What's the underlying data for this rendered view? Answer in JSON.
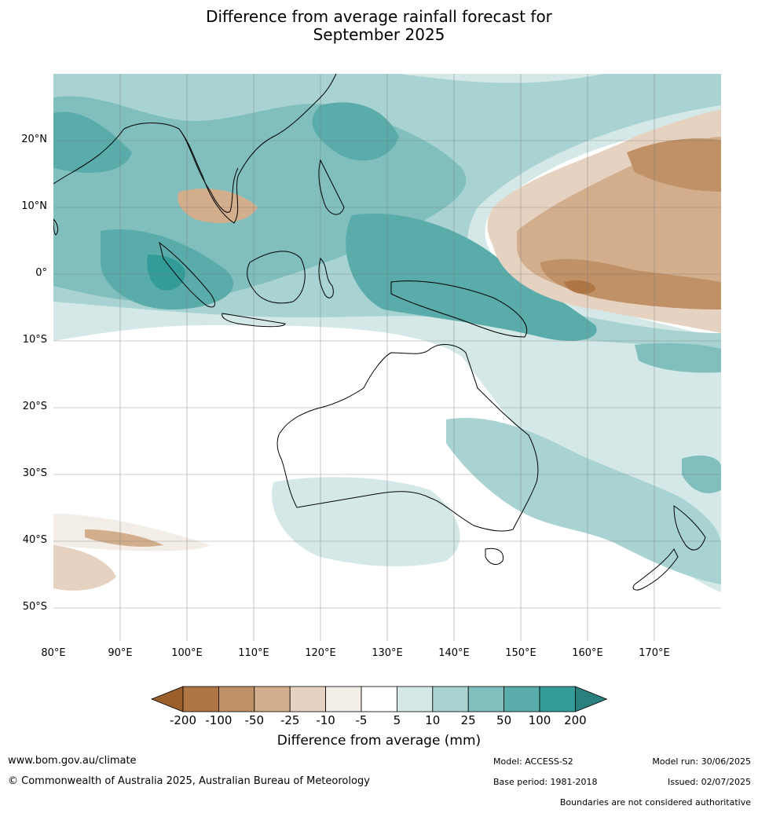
{
  "title_line1": "Difference from average rainfall forecast for",
  "title_line2": "September 2025",
  "map": {
    "lat_labels": [
      "20°N",
      "10°N",
      "0°",
      "10°S",
      "20°S",
      "30°S",
      "40°S",
      "50°S"
    ],
    "lon_labels": [
      "80°E",
      "90°E",
      "100°E",
      "110°E",
      "120°E",
      "130°E",
      "140°E",
      "150°E",
      "160°E",
      "170°E"
    ],
    "lat_range": [
      -55,
      30
    ],
    "lon_range": [
      80,
      180
    ]
  },
  "legend": {
    "title": "Difference from average (mm)",
    "tick_labels": [
      "-200",
      "-100",
      "-50",
      "-25",
      "-10",
      "-5",
      "5",
      "10",
      "25",
      "50",
      "100",
      "200"
    ],
    "colors": [
      "#9b5f2b",
      "#ad7644",
      "#c09066",
      "#d2ae8d",
      "#e6d2c0",
      "#f2ede7",
      "#ffffff",
      "#d4e9e7",
      "#a8d3d2",
      "#80bfbd",
      "#5aacab",
      "#339c99",
      "#2a807d"
    ]
  },
  "footer": {
    "url": "www.bom.gov.au/climate",
    "copyright": "© Commonwealth of Australia 2025, Australian Bureau of Meteorology",
    "model": "Model: ACCESS-S2",
    "base_period": "Base period: 1981-2018",
    "model_run": "Model run: 30/06/2025",
    "issued": "Issued: 02/07/2025",
    "boundaries_note": "Boundaries are not considered authoritative"
  }
}
